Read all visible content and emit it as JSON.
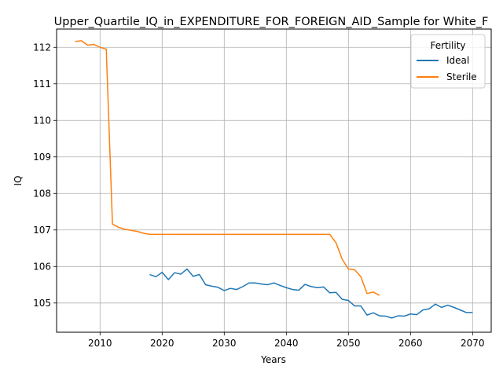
{
  "chart_data": {
    "type": "line",
    "title": "Upper_Quartile_IQ_in_EXPENDITURE_FOR_FOREIGN_AID_Sample for White_F",
    "xlabel": "Years",
    "ylabel": "IQ",
    "xlim": [
      2003,
      2073
    ],
    "ylim": [
      104.2,
      112.5
    ],
    "xticks": [
      2010,
      2020,
      2030,
      2040,
      2050,
      2060,
      2070
    ],
    "yticks": [
      105,
      106,
      107,
      108,
      109,
      110,
      111,
      112
    ],
    "grid": true,
    "legend": {
      "title": "Fertility",
      "position": "top-right"
    },
    "series": [
      {
        "name": "Ideal",
        "color": "#1f77b4",
        "x": [
          2018,
          2019,
          2020,
          2021,
          2022,
          2023,
          2024,
          2025,
          2026,
          2027,
          2028,
          2029,
          2030,
          2031,
          2032,
          2033,
          2034,
          2035,
          2036,
          2037,
          2038,
          2039,
          2040,
          2041,
          2042,
          2043,
          2044,
          2045,
          2046,
          2047,
          2048,
          2049,
          2050,
          2051,
          2052,
          2053,
          2054,
          2055,
          2056,
          2057,
          2058,
          2059,
          2060,
          2061,
          2062,
          2063,
          2064,
          2065,
          2066,
          2067,
          2068,
          2069,
          2070
        ],
        "values": [
          105.78,
          105.72,
          105.84,
          105.64,
          105.83,
          105.79,
          105.93,
          105.73,
          105.78,
          105.5,
          105.46,
          105.43,
          105.34,
          105.4,
          105.37,
          105.45,
          105.55,
          105.55,
          105.52,
          105.5,
          105.55,
          105.48,
          105.42,
          105.37,
          105.35,
          105.51,
          105.45,
          105.42,
          105.44,
          105.28,
          105.29,
          105.1,
          105.07,
          104.92,
          104.92,
          104.67,
          104.73,
          104.65,
          104.64,
          104.59,
          104.65,
          104.64,
          104.7,
          104.68,
          104.81,
          104.84,
          104.97,
          104.88,
          104.94,
          104.88,
          104.81,
          104.74,
          104.74
        ]
      },
      {
        "name": "Sterile",
        "color": "#ff7f0e",
        "x": [
          2006,
          2007,
          2008,
          2009,
          2010,
          2011,
          2012,
          2013,
          2014,
          2015,
          2016,
          2017,
          2018,
          2019,
          2020,
          2021,
          2022,
          2023,
          2024,
          2025,
          2026,
          2027,
          2028,
          2029,
          2030,
          2031,
          2032,
          2033,
          2034,
          2035,
          2036,
          2037,
          2038,
          2039,
          2040,
          2041,
          2042,
          2043,
          2044,
          2045,
          2046,
          2047,
          2048,
          2049,
          2050,
          2051,
          2052,
          2053,
          2054,
          2055
        ],
        "values": [
          112.16,
          112.18,
          112.06,
          112.08,
          112.0,
          111.95,
          107.16,
          107.07,
          107.02,
          106.99,
          106.96,
          106.91,
          106.88,
          106.88,
          106.88,
          106.88,
          106.88,
          106.88,
          106.88,
          106.88,
          106.88,
          106.88,
          106.88,
          106.88,
          106.88,
          106.88,
          106.88,
          106.88,
          106.88,
          106.88,
          106.88,
          106.88,
          106.88,
          106.88,
          106.88,
          106.88,
          106.88,
          106.88,
          106.88,
          106.88,
          106.88,
          106.88,
          106.65,
          106.2,
          105.93,
          105.91,
          105.72,
          105.26,
          105.3,
          105.21
        ]
      }
    ]
  }
}
